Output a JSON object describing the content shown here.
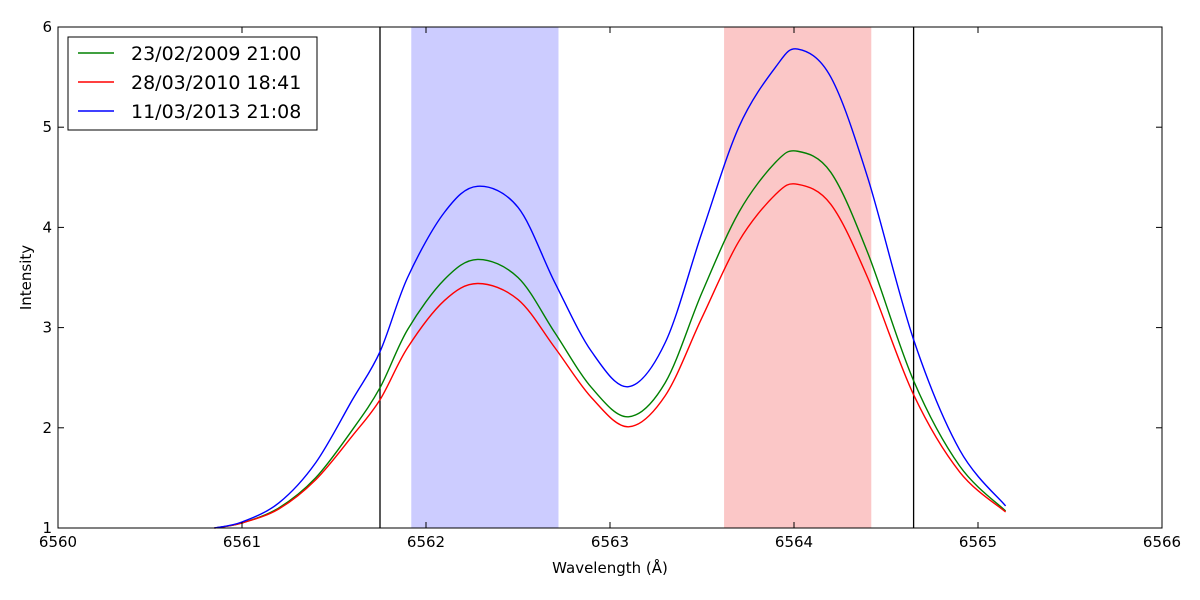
{
  "chart_data": {
    "type": "line",
    "title": "",
    "xlabel": "Wavelength (Å)",
    "ylabel": "Intensity",
    "xlim": [
      6560,
      6566
    ],
    "ylim": [
      1,
      6
    ],
    "xticks": [
      6560,
      6561,
      6562,
      6563,
      6564,
      6565,
      6566
    ],
    "yticks": [
      1,
      2,
      3,
      4,
      5,
      6
    ],
    "xtick_labels": [
      "6560",
      "6561",
      "6562",
      "6563",
      "6564",
      "6565",
      "6566"
    ],
    "ytick_labels": [
      "1",
      "2",
      "3",
      "4",
      "5",
      "6"
    ],
    "grid": false,
    "legend_position": "top-left",
    "bands": [
      {
        "x_start": 6561.92,
        "x_end": 6562.72,
        "color": "#0000ff",
        "opacity": 0.2
      },
      {
        "x_start": 6563.62,
        "x_end": 6564.42,
        "color": "#ee2020",
        "opacity": 0.25
      }
    ],
    "vlines": [
      6561.75,
      6564.65
    ],
    "series": [
      {
        "name": "23/02/2009 21:00",
        "color": "#008000",
        "x": [
          6560.85,
          6561.0,
          6561.2,
          6561.4,
          6561.6,
          6561.75,
          6561.9,
          6562.1,
          6562.28,
          6562.5,
          6562.7,
          6562.9,
          6563.1,
          6563.3,
          6563.5,
          6563.7,
          6563.9,
          6564.02,
          6564.2,
          6564.4,
          6564.65,
          6564.9,
          6565.15
        ],
        "y": [
          1.0,
          1.05,
          1.2,
          1.5,
          1.98,
          2.4,
          2.98,
          3.48,
          3.68,
          3.5,
          2.95,
          2.4,
          2.11,
          2.45,
          3.35,
          4.15,
          4.65,
          4.76,
          4.55,
          3.75,
          2.47,
          1.62,
          1.17
        ]
      },
      {
        "name": "28/03/2010 18:41",
        "color": "#ff0000",
        "x": [
          6560.85,
          6561.0,
          6561.2,
          6561.4,
          6561.6,
          6561.75,
          6561.9,
          6562.1,
          6562.28,
          6562.5,
          6562.7,
          6562.9,
          6563.1,
          6563.3,
          6563.5,
          6563.7,
          6563.9,
          6564.02,
          6564.2,
          6564.4,
          6564.65,
          6564.9,
          6565.15
        ],
        "y": [
          1.0,
          1.05,
          1.19,
          1.48,
          1.92,
          2.28,
          2.8,
          3.27,
          3.44,
          3.28,
          2.8,
          2.3,
          2.01,
          2.32,
          3.1,
          3.86,
          4.33,
          4.43,
          4.23,
          3.5,
          2.33,
          1.56,
          1.16
        ]
      },
      {
        "name": "11/03/2013 21:08",
        "color": "#0000ff",
        "x": [
          6560.85,
          6561.0,
          6561.2,
          6561.4,
          6561.6,
          6561.75,
          6561.9,
          6562.1,
          6562.28,
          6562.5,
          6562.7,
          6562.9,
          6563.1,
          6563.3,
          6563.5,
          6563.7,
          6563.9,
          6564.02,
          6564.2,
          6564.4,
          6564.65,
          6564.9,
          6565.15
        ],
        "y": [
          1.0,
          1.06,
          1.25,
          1.65,
          2.28,
          2.76,
          3.5,
          4.15,
          4.41,
          4.2,
          3.45,
          2.76,
          2.41,
          2.85,
          3.95,
          5.0,
          5.6,
          5.78,
          5.5,
          4.5,
          2.88,
          1.78,
          1.22
        ]
      }
    ]
  }
}
